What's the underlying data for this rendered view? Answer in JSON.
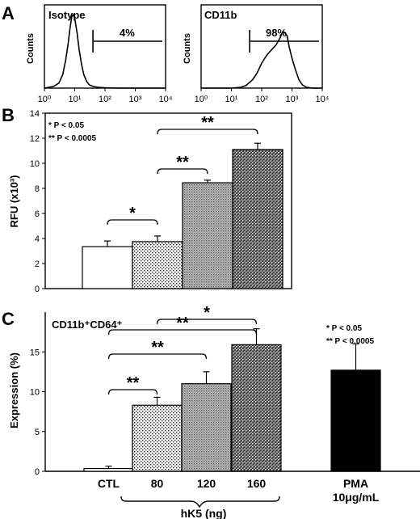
{
  "panels": {
    "A": {
      "letter": "A"
    },
    "B": {
      "letter": "B"
    },
    "C": {
      "letter": "C"
    }
  },
  "chart_data": [
    {
      "id": "A1",
      "type": "line",
      "title": "Isotype",
      "ylabel": "Counts",
      "xscale": "log",
      "xlim": [
        1,
        10000
      ],
      "xticks": [
        "10⁰",
        "10¹",
        "10²",
        "10³",
        "10⁴"
      ],
      "gate_label": "4%",
      "gate_range": [
        40,
        10000
      ],
      "histogram": {
        "x": [
          1,
          2,
          3,
          4,
          5,
          6,
          7,
          8,
          9,
          10,
          12,
          14,
          17,
          20,
          25,
          30,
          40,
          60,
          100,
          300,
          1000,
          10000
        ],
        "y": [
          0,
          0.02,
          0.06,
          0.16,
          0.33,
          0.52,
          0.72,
          0.86,
          0.88,
          0.84,
          0.66,
          0.46,
          0.28,
          0.16,
          0.08,
          0.04,
          0.02,
          0.01,
          0.005,
          0,
          0,
          0
        ]
      }
    },
    {
      "id": "A2",
      "type": "line",
      "title": "CD11b",
      "ylabel": "Counts",
      "xscale": "log",
      "xlim": [
        1,
        10000
      ],
      "xticks": [
        "10⁰",
        "10¹",
        "10²",
        "10³",
        "10⁴"
      ],
      "gate_label": "98%",
      "gate_range": [
        40,
        10000
      ],
      "histogram": {
        "x": [
          1,
          10,
          20,
          30,
          50,
          70,
          100,
          150,
          200,
          300,
          400,
          500,
          600,
          700,
          800,
          1000,
          1300,
          1700,
          2200,
          3000,
          5000,
          10000
        ],
        "y": [
          0,
          0,
          0.01,
          0.03,
          0.1,
          0.18,
          0.3,
          0.4,
          0.45,
          0.52,
          0.6,
          0.68,
          0.66,
          0.62,
          0.5,
          0.36,
          0.22,
          0.1,
          0.04,
          0.01,
          0,
          0
        ]
      }
    },
    {
      "id": "B",
      "type": "bar",
      "ylabel": "RFU (x10³)",
      "ylim": [
        0,
        14
      ],
      "yticks": [
        0,
        2,
        4,
        6,
        8,
        10,
        12,
        14
      ],
      "values": [
        3.35,
        3.75,
        8.45,
        11.1
      ],
      "errors": [
        0.45,
        0.45,
        0.2,
        0.5
      ],
      "legend": [
        "* P < 0.05",
        "** P < 0.0005"
      ],
      "significance": [
        {
          "from": 0,
          "to": 1,
          "label": "*"
        },
        {
          "from": 1,
          "to": 2,
          "label": "**"
        },
        {
          "from": 1,
          "to": 3,
          "label": "**"
        }
      ]
    },
    {
      "id": "C",
      "type": "bar",
      "title": "CD11b⁺CD64⁺",
      "ylabel": "Expression (%)",
      "ylim": [
        0,
        20
      ],
      "yticks": [
        0,
        5,
        10,
        15
      ],
      "categories": [
        "CTL",
        "80",
        "120",
        "160",
        "PMA\n10μg/mL"
      ],
      "group_label": "hK5 (ng)",
      "values": [
        0.35,
        8.3,
        11.0,
        15.9,
        12.7
      ],
      "errors": [
        0.3,
        1.0,
        1.5,
        2.0,
        3.3
      ],
      "legend": [
        "* P < 0.05",
        "** P < 0.0005"
      ],
      "significance": [
        {
          "from": 0,
          "to": 1,
          "label": "**"
        },
        {
          "from": 0,
          "to": 2,
          "label": "**"
        },
        {
          "from": 0,
          "to": 3,
          "label": "**"
        },
        {
          "from": 1,
          "to": 3,
          "label": "*"
        }
      ]
    }
  ]
}
